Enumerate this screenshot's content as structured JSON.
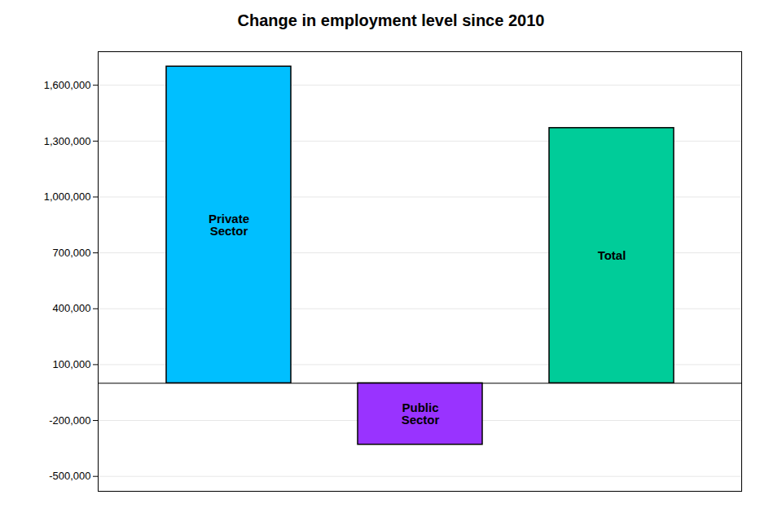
{
  "chart_data": {
    "type": "bar",
    "title": "Change in employment level since 2010",
    "categories": [
      "Private\nSector",
      "Public\nSector",
      "Total"
    ],
    "values": [
      1700000,
      -330000,
      1370000
    ],
    "colors": [
      "#00BFFF",
      "#9933FF",
      "#00CC99"
    ],
    "ylim": [
      -580000,
      1780000
    ],
    "yticks": [
      {
        "value": -500000,
        "label": "-500,000"
      },
      {
        "value": -200000,
        "label": "-200,000"
      },
      {
        "value": 100000,
        "label": "100,000"
      },
      {
        "value": 400000,
        "label": "400,000"
      },
      {
        "value": 700000,
        "label": "700,000"
      },
      {
        "value": 1000000,
        "label": "1,000,000"
      },
      {
        "value": 1300000,
        "label": "1,300,000"
      },
      {
        "value": 1600000,
        "label": "1,600,000"
      }
    ],
    "grid": true,
    "tick_labels": "y"
  }
}
